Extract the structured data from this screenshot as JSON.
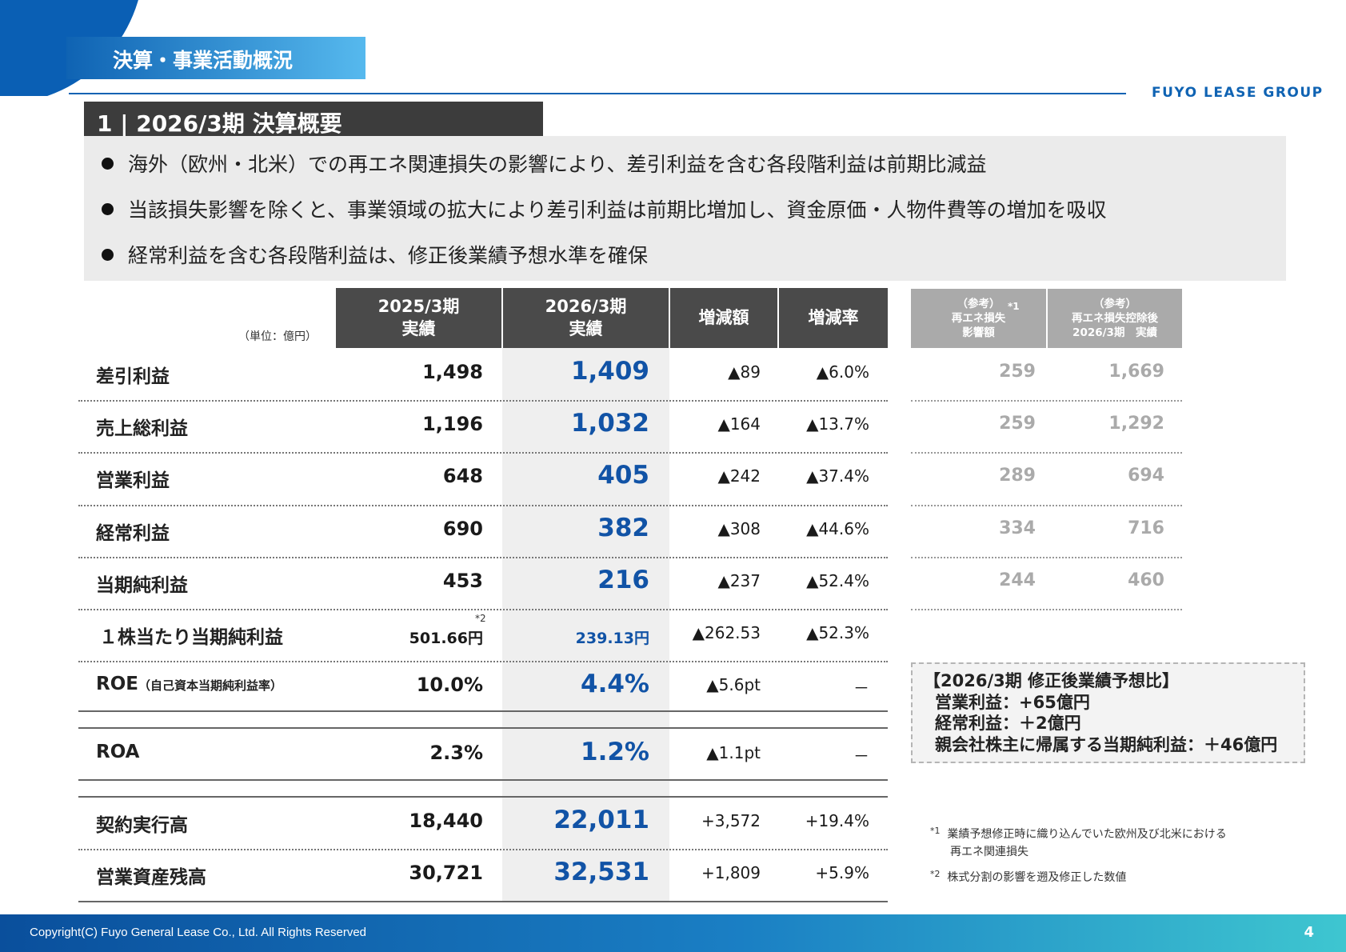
{
  "header": {
    "section_label": "決算・事業活動概況",
    "logo": "FUYO LEASE GROUP"
  },
  "section_title": "1 | 2026/3期 決算概要",
  "summary_bullets": [
    "海外（欧州・北米）での再エネ関連損失の影響により、差引利益を含む各段階利益は前期比減益",
    "当該損失影響を除くと、事業領域の拡大により差引利益は前期比増加し、資金原価・人物件費等の増加を吸収",
    "経常利益を含む各段階利益は、修正後業績予想水準を確保"
  ],
  "table": {
    "unit": "（単位：億円）",
    "headers": [
      "2025/3期\n実績",
      "2026/3期\n実績",
      "増減額",
      "増減率"
    ],
    "rows": [
      {
        "label": "差引利益",
        "prev": "1,498",
        "curr": "1,409",
        "diff": "▲89",
        "rate": "▲6.0%"
      },
      {
        "label": "売上総利益",
        "prev": "1,196",
        "curr": "1,032",
        "diff": "▲164",
        "rate": "▲13.7%"
      },
      {
        "label": "営業利益",
        "prev": "648",
        "curr": "405",
        "diff": "▲242",
        "rate": "▲37.4%"
      },
      {
        "label": "経常利益",
        "prev": "690",
        "curr": "382",
        "diff": "▲308",
        "rate": "▲44.6%"
      },
      {
        "label": "当期純利益",
        "prev": "453",
        "curr": "216",
        "diff": "▲237",
        "rate": "▲52.4%"
      },
      {
        "label": "１株当たり当期純利益",
        "prev": "501.66円",
        "prev_note": "*2",
        "curr": "239.13円",
        "diff": "▲262.53",
        "rate": "▲52.3%"
      },
      {
        "label": "ROE",
        "label_sub": "（自己資本当期純利益率）",
        "prev": "10.0%",
        "curr": "4.4%",
        "diff": "▲5.6pt",
        "rate": "－"
      },
      {
        "label": "ROA",
        "prev": "2.3%",
        "curr": "1.2%",
        "diff": "▲1.1pt",
        "rate": "－"
      },
      {
        "label": "契約実行高",
        "prev": "18,440",
        "curr": "22,011",
        "diff": "+3,572",
        "rate": "+19.4%"
      },
      {
        "label": "営業資産残高",
        "prev": "30,721",
        "curr": "32,531",
        "diff": "+1,809",
        "rate": "+5.9%"
      }
    ]
  },
  "reference": {
    "headers": [
      "（参考）\n再エネ損失\n影響額",
      "（参考）\n再エネ損失控除後\n2026/3期　実績"
    ],
    "header_note": "*1",
    "rows": [
      {
        "impact": "259",
        "adjusted": "1,669"
      },
      {
        "impact": "259",
        "adjusted": "1,292"
      },
      {
        "impact": "289",
        "adjusted": "694"
      },
      {
        "impact": "334",
        "adjusted": "716"
      },
      {
        "impact": "244",
        "adjusted": "460"
      }
    ]
  },
  "forecast_box": [
    "【2026/3期 修正後業績予想比】",
    "営業利益：+65億円",
    "経常利益：＋2億円",
    "親会社株主に帰属する当期純利益：＋46億円"
  ],
  "notes": [
    {
      "mark": "*1",
      "text": "業績予想修正時に織り込んでいた欧州及び北米における",
      "text2": "再エネ関連損失"
    },
    {
      "mark": "*2",
      "text": "株式分割の影響を遡及修正した数値"
    }
  ],
  "footer": {
    "copyright": "Copyright(C) Fuyo General Lease Co., Ltd. All Rights Reserved",
    "page": "4"
  }
}
